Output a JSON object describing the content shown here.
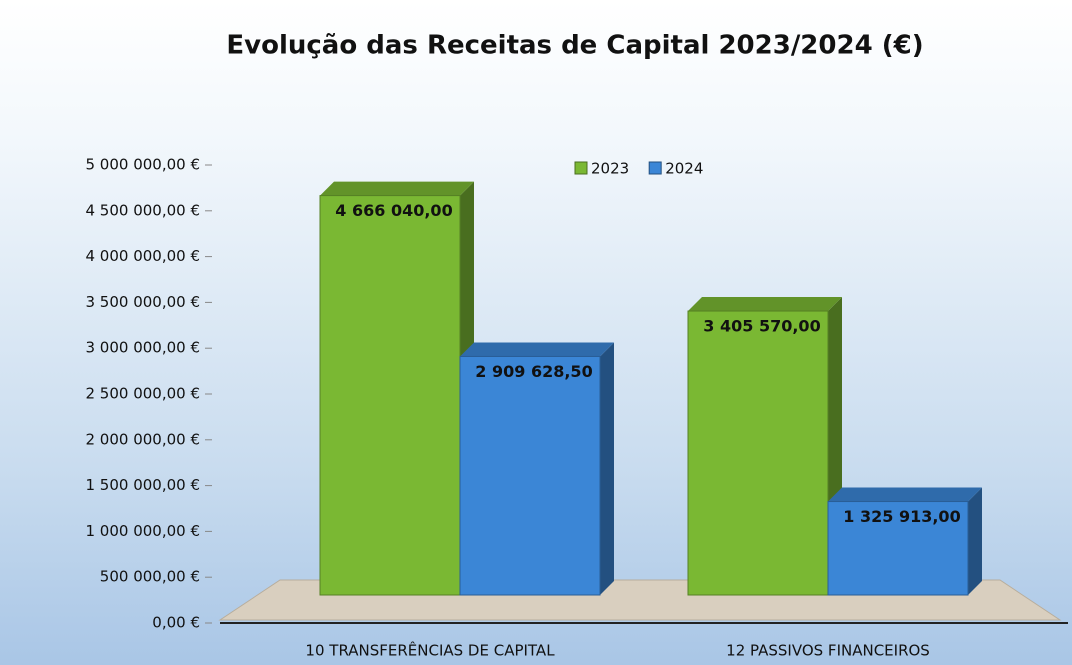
{
  "chart_data": {
    "type": "bar3d",
    "title": "Evolução das Receitas de Capital 2023/2024 (€)",
    "categories": [
      "10 TRANSFERÊNCIAS DE CAPITAL",
      "12 PASSIVOS FINANCEIROS"
    ],
    "series": [
      {
        "name": "2023",
        "color": "#7ab833",
        "values": [
          4666040,
          3405570
        ],
        "value_labels": [
          "4 666 040,00",
          "3 405 570,00"
        ]
      },
      {
        "name": "2024",
        "color": "#3b86d6",
        "values": [
          2909628.5,
          1325913
        ],
        "value_labels": [
          "2 909 628,50",
          "1 325 913,00"
        ]
      }
    ],
    "ylim": [
      0,
      5000000
    ],
    "yticks": [
      {
        "value": 0,
        "label": "0,00 €"
      },
      {
        "value": 500000,
        "label": "500 000,00 €"
      },
      {
        "value": 1000000,
        "label": "1 000 000,00 €"
      },
      {
        "value": 1500000,
        "label": "1 500 000,00 €"
      },
      {
        "value": 2000000,
        "label": "2 000 000,00 €"
      },
      {
        "value": 2500000,
        "label": "2 500 000,00 €"
      },
      {
        "value": 3000000,
        "label": "3 000 000,00 €"
      },
      {
        "value": 3500000,
        "label": "3 500 000,00 €"
      },
      {
        "value": 4000000,
        "label": "4 000 000,00 €"
      },
      {
        "value": 4500000,
        "label": "4 500 000,00 €"
      },
      {
        "value": 5000000,
        "label": "5 000 000,00 €"
      }
    ]
  }
}
